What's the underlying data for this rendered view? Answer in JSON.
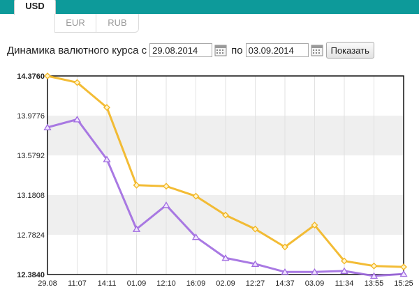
{
  "tabs": {
    "active": "USD",
    "sub": [
      "EUR",
      "RUB"
    ]
  },
  "filter": {
    "label": "Динамика валютного курса с",
    "from": "29.08.2014",
    "to_label": "по",
    "to": "03.09.2014",
    "button": "Показать"
  },
  "colors": {
    "topbar": "#0d9a9a",
    "series_yellow": "#f2b51f",
    "series_purple": "#a06ae0"
  },
  "chart_data": {
    "type": "line",
    "x": [
      "29.08",
      "11:07",
      "14:11",
      "01.09",
      "12:10",
      "16:09",
      "02.09",
      "12:27",
      "14:37",
      "03.09",
      "11:34",
      "13:55",
      "15:25"
    ],
    "yticks": [
      "14.3760",
      "13.9776",
      "13.5792",
      "13.1808",
      "12.7824",
      "12.3840"
    ],
    "ylim": [
      12.384,
      14.376
    ],
    "grid": true,
    "series": [
      {
        "color": "#f2b51f",
        "marker": "diamond",
        "values": [
          14.376,
          14.31,
          14.06,
          13.28,
          13.27,
          13.17,
          12.98,
          12.84,
          12.66,
          12.88,
          12.52,
          12.47,
          12.46
        ]
      },
      {
        "color": "#a06ae0",
        "marker": "triangle",
        "values": [
          13.86,
          13.94,
          13.54,
          12.84,
          13.08,
          12.76,
          12.55,
          12.49,
          12.41,
          12.41,
          12.42,
          12.37,
          12.39
        ]
      }
    ]
  }
}
